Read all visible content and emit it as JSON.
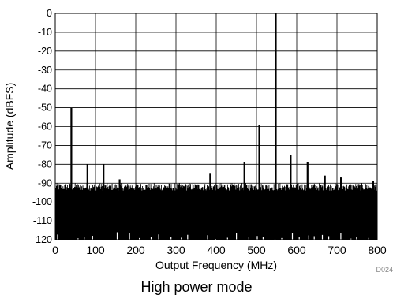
{
  "caption": "High power mode",
  "figure_id": "D024",
  "chart_data": {
    "type": "line",
    "xlabel": "Output Frequency (MHz)",
    "ylabel": "Amplitude (dBFS)",
    "xlim": [
      0,
      800
    ],
    "ylim": [
      -120,
      0
    ],
    "x_ticks": [
      "0",
      "100",
      "200",
      "300",
      "400",
      "500",
      "600",
      "700",
      "800"
    ],
    "y_ticks": [
      "0",
      "-10",
      "-20",
      "-30",
      "-40",
      "-50",
      "-60",
      "-70",
      "-80",
      "-90",
      "-100",
      "-110",
      "-120"
    ],
    "grid": true,
    "series": [
      {
        "color": "#000000",
        "noise_floor_dbfs": [
          -94,
          -90
        ],
        "spurs": [
          {
            "x": 40,
            "y": -50
          },
          {
            "x": 80,
            "y": -80
          },
          {
            "x": 120,
            "y": -80
          },
          {
            "x": 160,
            "y": -88
          },
          {
            "x": 385,
            "y": -85
          },
          {
            "x": 470,
            "y": -79
          },
          {
            "x": 507,
            "y": -59
          },
          {
            "x": 548,
            "y": 0
          },
          {
            "x": 585,
            "y": -75
          },
          {
            "x": 627,
            "y": -79
          },
          {
            "x": 670,
            "y": -86
          },
          {
            "x": 710,
            "y": -87
          },
          {
            "x": 790,
            "y": -89
          }
        ]
      }
    ]
  }
}
